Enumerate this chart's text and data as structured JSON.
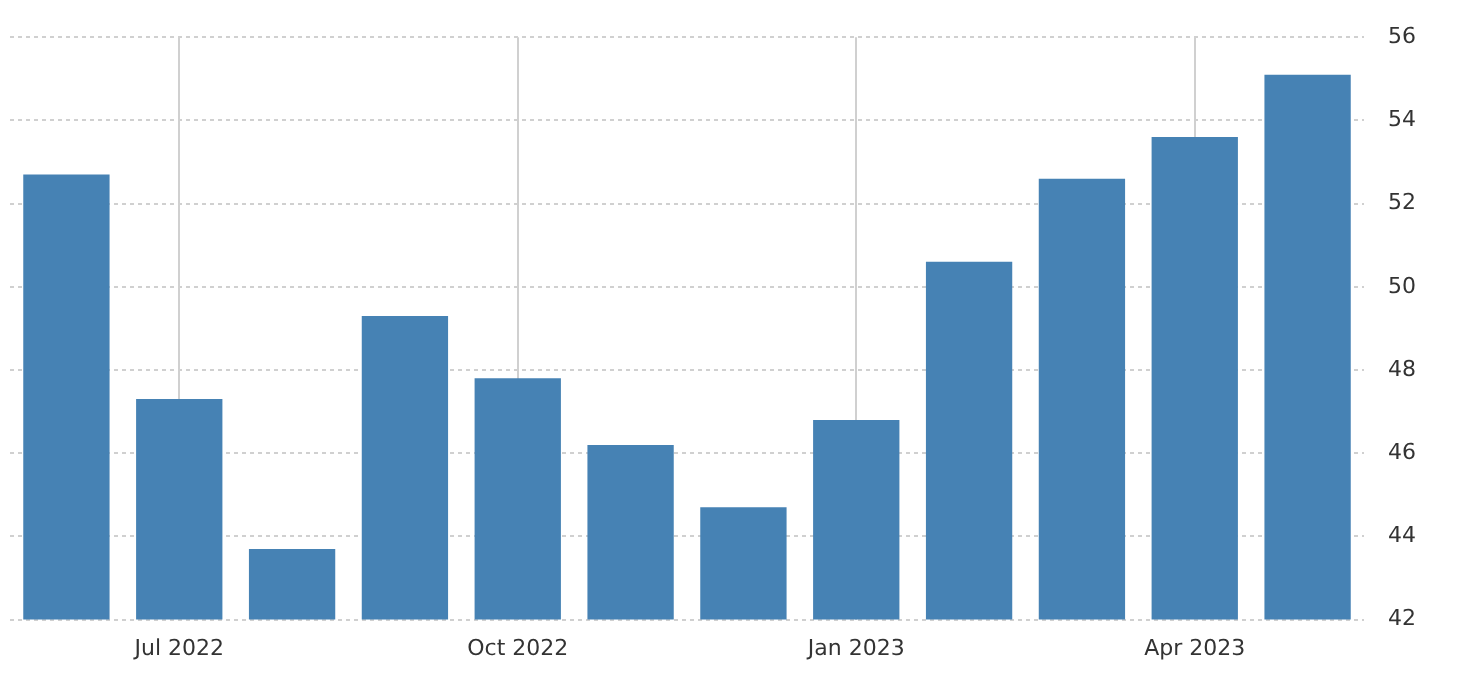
{
  "chart_data": {
    "type": "bar",
    "categories": [
      null,
      "Jul 2022",
      null,
      null,
      "Oct 2022",
      null,
      null,
      "Jan 2023",
      null,
      null,
      "Apr 2023",
      null
    ],
    "values": [
      52.7,
      47.3,
      43.7,
      49.3,
      47.8,
      46.2,
      44.7,
      46.8,
      50.6,
      52.6,
      53.6,
      55.1
    ],
    "color": "#4682b4",
    "ylim": [
      42,
      56
    ],
    "yticks": [
      42,
      44,
      46,
      48,
      50,
      52,
      54,
      56
    ],
    "grid": true
  }
}
